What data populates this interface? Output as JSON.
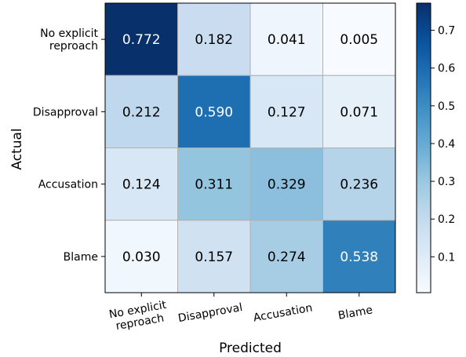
{
  "chart_data": {
    "type": "heatmap",
    "xlabel": "Predicted",
    "ylabel": "Actual",
    "x_categories": [
      [
        "No explicit",
        "reproach"
      ],
      [
        "Disapproval"
      ],
      [
        "Accusation"
      ],
      [
        "Blame"
      ]
    ],
    "y_categories": [
      [
        "No explicit",
        "reproach"
      ],
      [
        "Disapproval"
      ],
      [
        "Accusation"
      ],
      [
        "Blame"
      ]
    ],
    "values": [
      [
        0.772,
        0.182,
        0.041,
        0.005
      ],
      [
        0.212,
        0.59,
        0.127,
        0.071
      ],
      [
        0.124,
        0.311,
        0.329,
        0.236
      ],
      [
        0.03,
        0.157,
        0.274,
        0.538
      ]
    ],
    "cell_labels": [
      [
        "0.772",
        "0.182",
        "0.041",
        "0.005"
      ],
      [
        "0.212",
        "0.590",
        "0.127",
        "0.071"
      ],
      [
        "0.124",
        "0.311",
        "0.329",
        "0.236"
      ],
      [
        "0.030",
        "0.157",
        "0.274",
        "0.538"
      ]
    ],
    "colormap": "Blues",
    "colorbar": {
      "range": [
        0.005,
        0.772
      ],
      "ticks": [
        0.1,
        0.2,
        0.3,
        0.4,
        0.5,
        0.6,
        0.7
      ],
      "tick_labels": [
        "0.1",
        "0.2",
        "0.3",
        "0.4",
        "0.5",
        "0.6",
        "0.7"
      ]
    },
    "grid": true,
    "x_tick_rotation_deg": 10
  }
}
